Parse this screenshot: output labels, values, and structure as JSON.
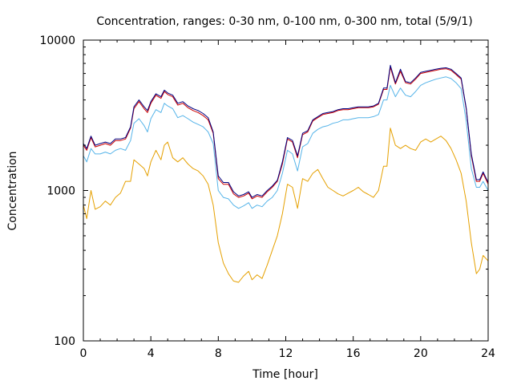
{
  "chart_data": {
    "type": "line",
    "title": "Concentration, ranges: 0-30 nm, 0-100 nm, 0-300 nm, total (5/9/1)",
    "xlabel": "Time [hour]",
    "ylabel": "Concentration",
    "xlim": [
      0,
      24
    ],
    "ylim": [
      100,
      10000
    ],
    "yscale": "log",
    "xticks": [
      0,
      4,
      8,
      12,
      16,
      20,
      24
    ],
    "xtick_labels": [
      "0",
      "4",
      "8",
      "12",
      "16",
      "20",
      "24"
    ],
    "yticks": [
      100,
      1000,
      10000
    ],
    "ytick_labels": [
      "100",
      "1000",
      "10000"
    ],
    "series": [
      {
        "name": "0-30 nm",
        "color": "#e5a000",
        "x": [
          0,
          0.2,
          0.45,
          0.7,
          1.0,
          1.3,
          1.6,
          1.9,
          2.2,
          2.5,
          2.8,
          3.0,
          3.3,
          3.6,
          3.8,
          4.0,
          4.3,
          4.6,
          4.8,
          5.0,
          5.3,
          5.6,
          5.9,
          6.2,
          6.5,
          6.8,
          7.1,
          7.4,
          7.7,
          8.0,
          8.3,
          8.6,
          8.9,
          9.2,
          9.5,
          9.8,
          10.0,
          10.3,
          10.6,
          10.9,
          11.2,
          11.5,
          11.8,
          12.1,
          12.4,
          12.7,
          13.0,
          13.3,
          13.6,
          13.9,
          14.2,
          14.5,
          14.8,
          15.1,
          15.4,
          15.7,
          16.0,
          16.3,
          16.6,
          16.9,
          17.2,
          17.5,
          17.8,
          18.0,
          18.2,
          18.5,
          18.8,
          19.1,
          19.4,
          19.7,
          20.0,
          20.3,
          20.6,
          20.9,
          21.2,
          21.5,
          21.8,
          22.1,
          22.4,
          22.7,
          23.0,
          23.3,
          23.5,
          23.7,
          24.0
        ],
        "values": [
          800,
          650,
          1000,
          750,
          780,
          850,
          800,
          900,
          960,
          1150,
          1150,
          1600,
          1500,
          1400,
          1250,
          1550,
          1850,
          1600,
          2000,
          2100,
          1650,
          1550,
          1650,
          1500,
          1400,
          1350,
          1250,
          1100,
          800,
          450,
          330,
          280,
          250,
          245,
          270,
          290,
          255,
          275,
          260,
          320,
          400,
          500,
          700,
          1100,
          1050,
          760,
          1200,
          1150,
          1300,
          1380,
          1200,
          1050,
          1000,
          950,
          920,
          960,
          1000,
          1050,
          980,
          940,
          900,
          1000,
          1450,
          1450,
          2600,
          2000,
          1900,
          2000,
          1900,
          1850,
          2100,
          2200,
          2100,
          2200,
          2300,
          2150,
          1900,
          1600,
          1300,
          850,
          450,
          280,
          300,
          370,
          340
        ]
      },
      {
        "name": "0-100 nm",
        "color": "#56b4e9",
        "x": [
          0,
          0.2,
          0.45,
          0.7,
          1.0,
          1.3,
          1.6,
          1.9,
          2.2,
          2.5,
          2.8,
          3.0,
          3.3,
          3.6,
          3.8,
          4.0,
          4.3,
          4.6,
          4.8,
          5.0,
          5.3,
          5.6,
          5.9,
          6.2,
          6.5,
          6.8,
          7.1,
          7.4,
          7.7,
          8.0,
          8.3,
          8.6,
          8.9,
          9.2,
          9.5,
          9.8,
          10.0,
          10.3,
          10.6,
          10.9,
          11.2,
          11.5,
          11.8,
          12.1,
          12.4,
          12.7,
          13.0,
          13.3,
          13.6,
          13.9,
          14.2,
          14.5,
          14.8,
          15.1,
          15.4,
          15.7,
          16.0,
          16.3,
          16.6,
          16.9,
          17.2,
          17.5,
          17.8,
          18.0,
          18.2,
          18.5,
          18.8,
          19.1,
          19.4,
          19.7,
          20.0,
          20.3,
          20.6,
          20.9,
          21.2,
          21.5,
          21.8,
          22.1,
          22.4,
          22.7,
          23.0,
          23.3,
          23.5,
          23.7,
          24.0
        ],
        "values": [
          1700,
          1550,
          1900,
          1750,
          1750,
          1800,
          1750,
          1850,
          1900,
          1850,
          2150,
          2800,
          3000,
          2700,
          2450,
          3000,
          3450,
          3300,
          3800,
          3650,
          3500,
          3050,
          3150,
          3000,
          2850,
          2750,
          2650,
          2450,
          2050,
          1000,
          900,
          880,
          800,
          760,
          790,
          830,
          760,
          800,
          780,
          850,
          900,
          1000,
          1300,
          1850,
          1750,
          1350,
          1950,
          2050,
          2400,
          2550,
          2650,
          2700,
          2800,
          2850,
          2950,
          2950,
          3000,
          3050,
          3050,
          3050,
          3100,
          3200,
          4000,
          4000,
          5000,
          4200,
          4800,
          4300,
          4200,
          4550,
          5000,
          5200,
          5350,
          5500,
          5600,
          5700,
          5550,
          5200,
          4750,
          2900,
          1400,
          1050,
          1050,
          1150,
          1000
        ]
      },
      {
        "name": "0-300 nm",
        "color": "#cc0000",
        "x": [
          0,
          0.2,
          0.45,
          0.7,
          1.0,
          1.3,
          1.6,
          1.9,
          2.2,
          2.5,
          2.8,
          3.0,
          3.3,
          3.6,
          3.8,
          4.0,
          4.3,
          4.6,
          4.8,
          5.0,
          5.3,
          5.6,
          5.9,
          6.2,
          6.5,
          6.8,
          7.1,
          7.4,
          7.7,
          8.0,
          8.3,
          8.6,
          8.9,
          9.2,
          9.5,
          9.8,
          10.0,
          10.3,
          10.6,
          10.9,
          11.2,
          11.5,
          11.8,
          12.1,
          12.4,
          12.7,
          13.0,
          13.3,
          13.6,
          13.9,
          14.2,
          14.5,
          14.8,
          15.1,
          15.4,
          15.7,
          16.0,
          16.3,
          16.6,
          16.9,
          17.2,
          17.5,
          17.8,
          18.0,
          18.2,
          18.5,
          18.8,
          19.1,
          19.4,
          19.7,
          20.0,
          20.3,
          20.6,
          20.9,
          21.2,
          21.5,
          21.8,
          22.1,
          22.4,
          22.7,
          23.0,
          23.3,
          23.5,
          23.7,
          24.0
        ],
        "values": [
          2000,
          1850,
          2250,
          1950,
          2000,
          2050,
          2000,
          2150,
          2150,
          2200,
          2600,
          3500,
          3900,
          3500,
          3300,
          3800,
          4300,
          4100,
          4550,
          4350,
          4200,
          3700,
          3800,
          3550,
          3400,
          3300,
          3150,
          2950,
          2400,
          1200,
          1100,
          1100,
          950,
          900,
          920,
          960,
          880,
          920,
          900,
          980,
          1050,
          1150,
          1500,
          2200,
          2100,
          1650,
          2350,
          2450,
          2900,
          3050,
          3200,
          3250,
          3300,
          3400,
          3450,
          3450,
          3500,
          3550,
          3550,
          3550,
          3600,
          3750,
          4700,
          4700,
          6600,
          5100,
          6200,
          5200,
          5100,
          5500,
          6000,
          6100,
          6200,
          6300,
          6400,
          6450,
          6300,
          5900,
          5500,
          3500,
          1700,
          1150,
          1150,
          1300,
          1100
        ]
      },
      {
        "name": "total",
        "color": "#000080",
        "x": [
          0,
          0.2,
          0.45,
          0.7,
          1.0,
          1.3,
          1.6,
          1.9,
          2.2,
          2.5,
          2.8,
          3.0,
          3.3,
          3.6,
          3.8,
          4.0,
          4.3,
          4.6,
          4.8,
          5.0,
          5.3,
          5.6,
          5.9,
          6.2,
          6.5,
          6.8,
          7.1,
          7.4,
          7.7,
          8.0,
          8.3,
          8.6,
          8.9,
          9.2,
          9.5,
          9.8,
          10.0,
          10.3,
          10.6,
          10.9,
          11.2,
          11.5,
          11.8,
          12.1,
          12.4,
          12.7,
          13.0,
          13.3,
          13.6,
          13.9,
          14.2,
          14.5,
          14.8,
          15.1,
          15.4,
          15.7,
          16.0,
          16.3,
          16.6,
          16.9,
          17.2,
          17.5,
          17.8,
          18.0,
          18.2,
          18.5,
          18.8,
          19.1,
          19.4,
          19.7,
          20.0,
          20.3,
          20.6,
          20.9,
          21.2,
          21.5,
          21.8,
          22.1,
          22.4,
          22.7,
          23.0,
          23.3,
          23.5,
          23.7,
          24.0
        ],
        "values": [
          2050,
          1900,
          2300,
          2000,
          2050,
          2100,
          2050,
          2200,
          2200,
          2250,
          2650,
          3600,
          4000,
          3600,
          3400,
          3900,
          4400,
          4200,
          4650,
          4450,
          4300,
          3800,
          3900,
          3650,
          3500,
          3400,
          3250,
          3050,
          2450,
          1250,
          1130,
          1130,
          980,
          920,
          940,
          980,
          900,
          940,
          920,
          1000,
          1070,
          1170,
          1550,
          2250,
          2150,
          1700,
          2400,
          2500,
          2950,
          3100,
          3250,
          3300,
          3350,
          3450,
          3500,
          3500,
          3550,
          3600,
          3600,
          3600,
          3650,
          3800,
          4800,
          4800,
          6800,
          5200,
          6400,
          5300,
          5200,
          5600,
          6100,
          6200,
          6300,
          6400,
          6500,
          6550,
          6400,
          6000,
          5600,
          3550,
          1750,
          1180,
          1180,
          1330,
          1130
        ]
      }
    ]
  }
}
